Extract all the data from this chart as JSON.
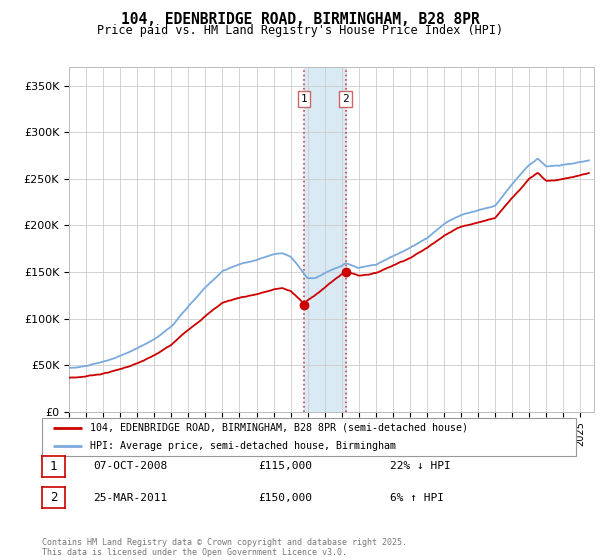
{
  "title_line1": "104, EDENBRIDGE ROAD, BIRMINGHAM, B28 8PR",
  "title_line2": "Price paid vs. HM Land Registry's House Price Index (HPI)",
  "ylim": [
    0,
    370000
  ],
  "yticks": [
    0,
    50000,
    100000,
    150000,
    200000,
    250000,
    300000,
    350000
  ],
  "ytick_labels": [
    "£0",
    "£50K",
    "£100K",
    "£150K",
    "£200K",
    "£250K",
    "£300K",
    "£350K"
  ],
  "xlim_start": 1995.0,
  "xlim_end": 2025.8,
  "purchase1_date": 2008.77,
  "purchase1_price": 115000,
  "purchase2_date": 2011.23,
  "purchase2_price": 150000,
  "highlight_color": "#daeaf5",
  "legend_line1": "104, EDENBRIDGE ROAD, BIRMINGHAM, B28 8PR (semi-detached house)",
  "legend_line2": "HPI: Average price, semi-detached house, Birmingham",
  "annotation1_date": "07-OCT-2008",
  "annotation1_price": "£115,000",
  "annotation1_hpi": "22% ↓ HPI",
  "annotation2_date": "25-MAR-2011",
  "annotation2_price": "£150,000",
  "annotation2_hpi": "6% ↑ HPI",
  "footer": "Contains HM Land Registry data © Crown copyright and database right 2025.\nThis data is licensed under the Open Government Licence v3.0.",
  "line_color_property": "#cc0000",
  "line_color_hpi": "#7aaadd",
  "background_color": "#ffffff",
  "grid_color": "#cccccc"
}
